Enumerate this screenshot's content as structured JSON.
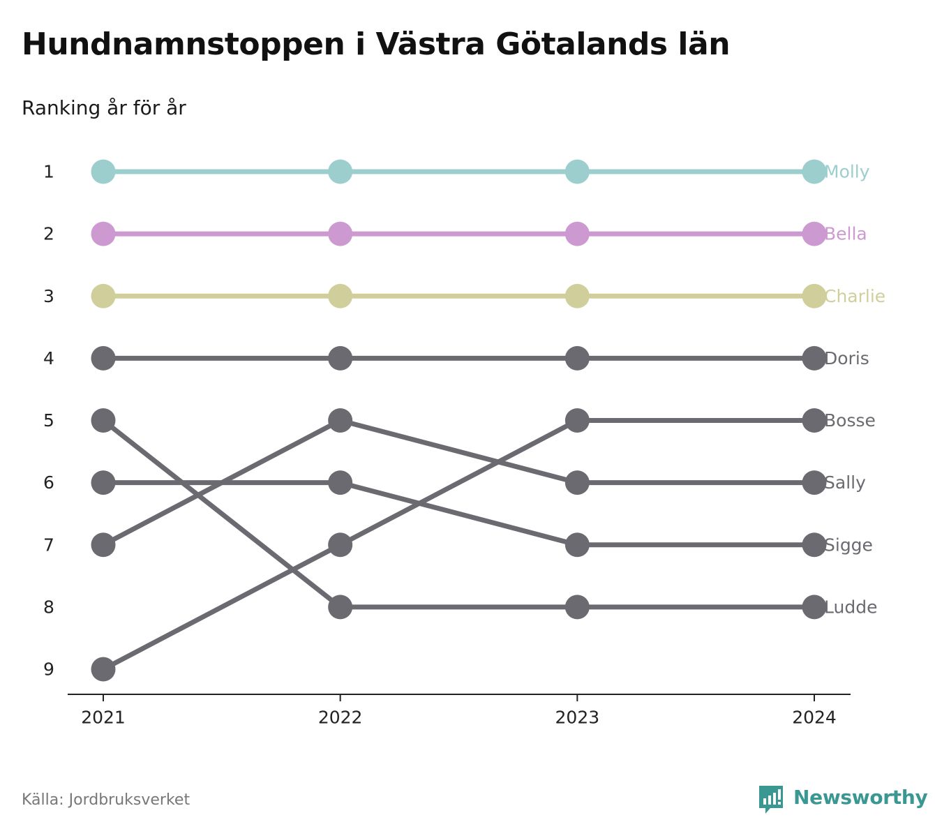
{
  "title": "Hundnamnstoppen i Västra Götalands län",
  "subtitle": "Ranking år för år",
  "source": "Källa: Jordbruksverket",
  "brand": {
    "name": "Newsworthy",
    "icon": "newsworthy-chart-icon",
    "color": "#3a9792"
  },
  "chart_data": {
    "type": "line",
    "chart_kind": "bump",
    "x": [
      "2021",
      "2022",
      "2023",
      "2024"
    ],
    "y_ticks": [
      1,
      2,
      3,
      4,
      5,
      6,
      7,
      8,
      9
    ],
    "y_reversed": true,
    "ylim": [
      1,
      9
    ],
    "grid": false,
    "legend": "labels at line ends, right",
    "series": [
      {
        "name": "Molly",
        "color": "#9bcecd",
        "values": [
          1,
          1,
          1,
          1
        ]
      },
      {
        "name": "Bella",
        "color": "#cc9ad0",
        "values": [
          2,
          2,
          2,
          2
        ]
      },
      {
        "name": "Charlie",
        "color": "#d0cf9b",
        "values": [
          3,
          3,
          3,
          3
        ]
      },
      {
        "name": "Doris",
        "color": "#6b6a70",
        "values": [
          4,
          4,
          4,
          4
        ]
      },
      {
        "name": "Bosse",
        "color": "#6b6a70",
        "values": [
          9,
          7,
          5,
          5
        ]
      },
      {
        "name": "Sally",
        "color": "#6b6a70",
        "values": [
          7,
          5,
          6,
          6
        ]
      },
      {
        "name": "Sigge",
        "color": "#6b6a70",
        "values": [
          6,
          6,
          7,
          7
        ]
      },
      {
        "name": "Ludde",
        "color": "#6b6a70",
        "values": [
          5,
          8,
          8,
          8
        ]
      }
    ]
  }
}
